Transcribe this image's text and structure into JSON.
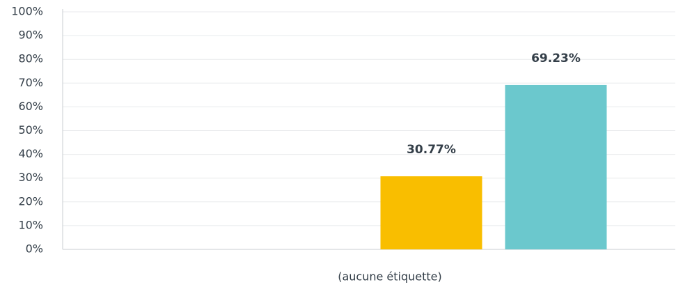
{
  "chart_data": {
    "type": "bar",
    "categories": [
      "(aucune étiquette)"
    ],
    "series": [
      {
        "values": [
          null
        ]
      },
      {
        "values": [
          null
        ]
      },
      {
        "color": "#f9be00",
        "values": [
          30.77
        ],
        "value_labels": [
          "30.77%"
        ]
      },
      {
        "color": "#6bc8cd",
        "values": [
          69.23
        ],
        "value_labels": [
          "69.23%"
        ]
      }
    ],
    "ylim": [
      0,
      100
    ],
    "yticks": [
      {
        "value": 0,
        "label": "0%"
      },
      {
        "value": 10,
        "label": "10%"
      },
      {
        "value": 20,
        "label": "20%"
      },
      {
        "value": 30,
        "label": "30%"
      },
      {
        "value": 40,
        "label": "40%"
      },
      {
        "value": 50,
        "label": "50%"
      },
      {
        "value": 60,
        "label": "60%"
      },
      {
        "value": 70,
        "label": "70%"
      },
      {
        "value": 80,
        "label": "80%"
      },
      {
        "value": 90,
        "label": "90%"
      },
      {
        "value": 100,
        "label": "100%"
      }
    ],
    "grid": true
  }
}
